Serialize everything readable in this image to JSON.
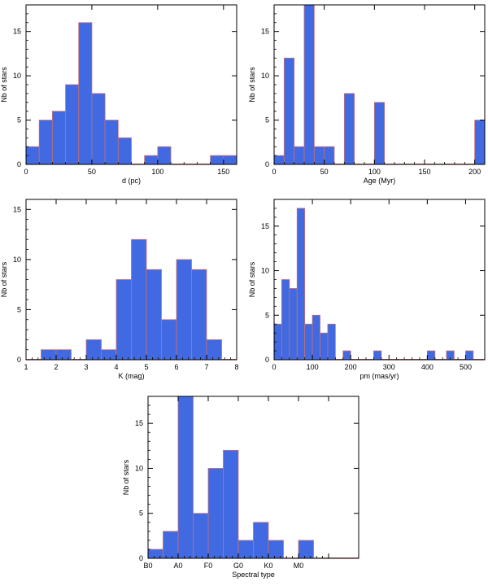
{
  "colors": {
    "bar_fill": "#4169e1",
    "bar_edge": "#c87070",
    "axis": "#000000",
    "baseline": "#c87070"
  },
  "chart_data": [
    {
      "type": "bar",
      "xlabel": "d (pc)",
      "ylabel": "Nb of stars",
      "xlim": [
        0,
        160
      ],
      "ylim": [
        0,
        18
      ],
      "xticks": [
        0,
        50,
        100,
        150
      ],
      "xtick_labels": [
        "0",
        "50",
        "100",
        "150"
      ],
      "yticks": [
        0,
        5,
        10,
        15
      ],
      "ytick_labels": [
        "0",
        "5",
        "10",
        "15"
      ],
      "bin_width": 10,
      "bins": [
        {
          "x0": 0,
          "value": 2
        },
        {
          "x0": 10,
          "value": 5
        },
        {
          "x0": 20,
          "value": 6
        },
        {
          "x0": 30,
          "value": 9
        },
        {
          "x0": 40,
          "value": 16
        },
        {
          "x0": 50,
          "value": 8
        },
        {
          "x0": 60,
          "value": 5
        },
        {
          "x0": 70,
          "value": 3
        },
        {
          "x0": 90,
          "value": 1
        },
        {
          "x0": 100,
          "value": 2
        },
        {
          "x0": 140,
          "value": 1
        },
        {
          "x0": 150,
          "value": 1
        }
      ]
    },
    {
      "type": "bar",
      "xlabel": "Age (Myr)",
      "ylabel": "Nb of stars",
      "xlim": [
        0,
        210
      ],
      "ylim": [
        0,
        18
      ],
      "xticks": [
        0,
        50,
        100,
        150,
        200
      ],
      "xtick_labels": [
        "0",
        "50",
        "100",
        "150",
        "200"
      ],
      "yticks": [
        0,
        5,
        10,
        15
      ],
      "ytick_labels": [
        "0",
        "5",
        "10",
        "15"
      ],
      "bin_width": 10,
      "bins": [
        {
          "x0": 0,
          "value": 1
        },
        {
          "x0": 10,
          "value": 12
        },
        {
          "x0": 20,
          "value": 2
        },
        {
          "x0": 30,
          "value": 18
        },
        {
          "x0": 40,
          "value": 2
        },
        {
          "x0": 50,
          "value": 2
        },
        {
          "x0": 70,
          "value": 8
        },
        {
          "x0": 100,
          "value": 7
        },
        {
          "x0": 200,
          "value": 5
        }
      ]
    },
    {
      "type": "bar",
      "xlabel": "K (mag)",
      "ylabel": "Nb of stars",
      "xlim": [
        1,
        8
      ],
      "ylim": [
        0,
        16
      ],
      "xticks": [
        1,
        2,
        3,
        4,
        5,
        6,
        7,
        8
      ],
      "xtick_labels": [
        "1",
        "2",
        "3",
        "4",
        "5",
        "6",
        "7",
        "8"
      ],
      "yticks": [
        0,
        5,
        10,
        15
      ],
      "ytick_labels": [
        "0",
        "5",
        "10",
        "15"
      ],
      "bin_width": 0.5,
      "bins": [
        {
          "x0": 1.5,
          "value": 1
        },
        {
          "x0": 2.0,
          "value": 1
        },
        {
          "x0": 3.0,
          "value": 2
        },
        {
          "x0": 3.5,
          "value": 1
        },
        {
          "x0": 4.0,
          "value": 8
        },
        {
          "x0": 4.5,
          "value": 12
        },
        {
          "x0": 5.0,
          "value": 9
        },
        {
          "x0": 5.5,
          "value": 4
        },
        {
          "x0": 6.0,
          "value": 10
        },
        {
          "x0": 6.5,
          "value": 9
        },
        {
          "x0": 7.0,
          "value": 2
        }
      ]
    },
    {
      "type": "bar",
      "xlabel": "pm (mas/yr)",
      "ylabel": "Nb of stars",
      "xlim": [
        0,
        550
      ],
      "ylim": [
        0,
        18
      ],
      "xticks": [
        0,
        100,
        200,
        300,
        400,
        500
      ],
      "xtick_labels": [
        "0",
        "100",
        "200",
        "300",
        "400",
        "500"
      ],
      "yticks": [
        0,
        5,
        10,
        15
      ],
      "ytick_labels": [
        "0",
        "5",
        "10",
        "15"
      ],
      "bin_width": 20,
      "bins": [
        {
          "x0": 0,
          "value": 4
        },
        {
          "x0": 20,
          "value": 9
        },
        {
          "x0": 40,
          "value": 8
        },
        {
          "x0": 60,
          "value": 17
        },
        {
          "x0": 80,
          "value": 4
        },
        {
          "x0": 100,
          "value": 5
        },
        {
          "x0": 120,
          "value": 3
        },
        {
          "x0": 140,
          "value": 4
        },
        {
          "x0": 180,
          "value": 1
        },
        {
          "x0": 260,
          "value": 1
        },
        {
          "x0": 400,
          "value": 1
        },
        {
          "x0": 450,
          "value": 1
        },
        {
          "x0": 500,
          "value": 1
        }
      ]
    },
    {
      "type": "bar",
      "xlabel": "Spectral type",
      "ylabel": "Nb of stars",
      "xlim": [
        0,
        70
      ],
      "ylim": [
        0,
        18
      ],
      "xticks": [
        0,
        10,
        20,
        30,
        40,
        50,
        60
      ],
      "xtick_labels": [
        "B0",
        "A0",
        "F0",
        "G0",
        "K0",
        "M0",
        ""
      ],
      "yticks": [
        0,
        5,
        10,
        15
      ],
      "ytick_labels": [
        "0",
        "5",
        "10",
        "15"
      ],
      "bin_width": 5,
      "bins": [
        {
          "x0": 0,
          "value": 1
        },
        {
          "x0": 5,
          "value": 3
        },
        {
          "x0": 10,
          "value": 18
        },
        {
          "x0": 15,
          "value": 5
        },
        {
          "x0": 20,
          "value": 10
        },
        {
          "x0": 25,
          "value": 12
        },
        {
          "x0": 30,
          "value": 2
        },
        {
          "x0": 35,
          "value": 4
        },
        {
          "x0": 40,
          "value": 2
        },
        {
          "x0": 50,
          "value": 2
        }
      ]
    }
  ]
}
